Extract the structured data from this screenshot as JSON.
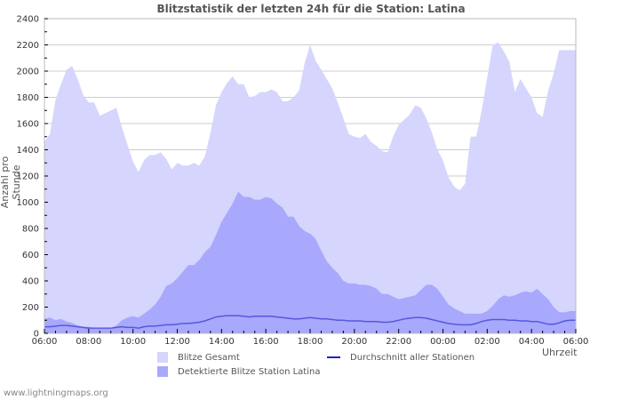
{
  "chart_data": {
    "type": "area",
    "title": "Blitzstatistik der letzten 24h für die Station: Latina",
    "xlabel": "Uhrzeit",
    "ylabel": "Anzahl pro Stunde",
    "ylim": [
      0,
      2400
    ],
    "y_ticks": [
      0,
      200,
      400,
      600,
      800,
      1000,
      1200,
      1400,
      1600,
      1800,
      2000,
      2200,
      2400
    ],
    "x_ticks": [
      "06:00",
      "08:00",
      "10:00",
      "12:00",
      "14:00",
      "16:00",
      "18:00",
      "20:00",
      "22:00",
      "00:00",
      "02:00",
      "04:00",
      "06:00"
    ],
    "grid": true,
    "legend_position": "bottom",
    "x_resolution": "15 min",
    "series": [
      {
        "name": "Blitze Gesamt",
        "type": "area",
        "color": "#d5d5fd",
        "values": [
          1460,
          1520,
          1780,
          1900,
          2010,
          2040,
          1940,
          1820,
          1760,
          1760,
          1660,
          1680,
          1700,
          1720,
          1570,
          1440,
          1310,
          1230,
          1320,
          1360,
          1360,
          1380,
          1330,
          1250,
          1300,
          1280,
          1280,
          1300,
          1280,
          1350,
          1530,
          1740,
          1840,
          1910,
          1960,
          1900,
          1900,
          1800,
          1810,
          1840,
          1840,
          1860,
          1840,
          1770,
          1770,
          1800,
          1850,
          2060,
          2200,
          2080,
          2010,
          1940,
          1870,
          1760,
          1640,
          1520,
          1500,
          1490,
          1520,
          1460,
          1430,
          1390,
          1380,
          1500,
          1590,
          1630,
          1670,
          1740,
          1720,
          1640,
          1530,
          1400,
          1320,
          1190,
          1120,
          1090,
          1140,
          1500,
          1500,
          1700,
          1950,
          2200,
          2220,
          2150,
          2070,
          1840,
          1940,
          1870,
          1800,
          1680,
          1650,
          1850,
          1980,
          2160,
          2160,
          2160,
          2160
        ]
      },
      {
        "name": "Detektierte Blitze Station Latina",
        "type": "area",
        "color": "#a8a8fc",
        "values": [
          110,
          120,
          100,
          110,
          90,
          80,
          60,
          50,
          50,
          40,
          40,
          40,
          40,
          60,
          100,
          120,
          130,
          120,
          150,
          180,
          220,
          280,
          360,
          380,
          420,
          470,
          520,
          520,
          560,
          620,
          660,
          750,
          850,
          920,
          990,
          1080,
          1040,
          1040,
          1020,
          1020,
          1040,
          1030,
          990,
          960,
          890,
          890,
          820,
          780,
          760,
          720,
          630,
          550,
          500,
          460,
          400,
          380,
          380,
          370,
          370,
          360,
          340,
          300,
          300,
          280,
          260,
          270,
          280,
          290,
          330,
          370,
          370,
          340,
          280,
          220,
          190,
          170,
          150,
          150,
          150,
          150,
          170,
          210,
          260,
          290,
          280,
          290,
          310,
          320,
          310,
          340,
          300,
          260,
          200,
          160,
          160,
          170,
          170
        ]
      },
      {
        "name": "Durchschnitt aller Stationen",
        "type": "line",
        "color": "#2222cc",
        "values": [
          50,
          50,
          55,
          60,
          60,
          55,
          50,
          45,
          40,
          40,
          40,
          40,
          40,
          45,
          50,
          45,
          45,
          40,
          50,
          55,
          55,
          60,
          65,
          65,
          70,
          75,
          75,
          80,
          85,
          95,
          110,
          125,
          130,
          135,
          135,
          135,
          130,
          125,
          130,
          130,
          130,
          130,
          125,
          120,
          115,
          110,
          110,
          115,
          120,
          115,
          110,
          110,
          105,
          100,
          100,
          95,
          95,
          95,
          90,
          90,
          90,
          85,
          85,
          90,
          100,
          110,
          115,
          120,
          120,
          115,
          105,
          95,
          85,
          75,
          70,
          65,
          65,
          65,
          75,
          90,
          100,
          105,
          105,
          105,
          100,
          100,
          95,
          95,
          90,
          90,
          80,
          70,
          70,
          80,
          95,
          100,
          100
        ]
      }
    ]
  },
  "header": {
    "title": "Blitzstatistik der letzten 24h für die Station: Latina"
  },
  "axes": {
    "ylabel": "Anzahl pro Stunde",
    "xlabel": "Uhrzeit"
  },
  "legend": {
    "total": "Blitze Gesamt",
    "station": "Detektierte Blitze Station Latina",
    "average": "Durchschnitt aller Stationen"
  },
  "colors": {
    "total": "#d5d5fd",
    "station": "#a8a8fc",
    "average": "#2222cc",
    "grid": "#cccccc",
    "frame": "#bbbbbb",
    "text": "#555555"
  },
  "footer": {
    "credit": "www.lightningmaps.org"
  }
}
